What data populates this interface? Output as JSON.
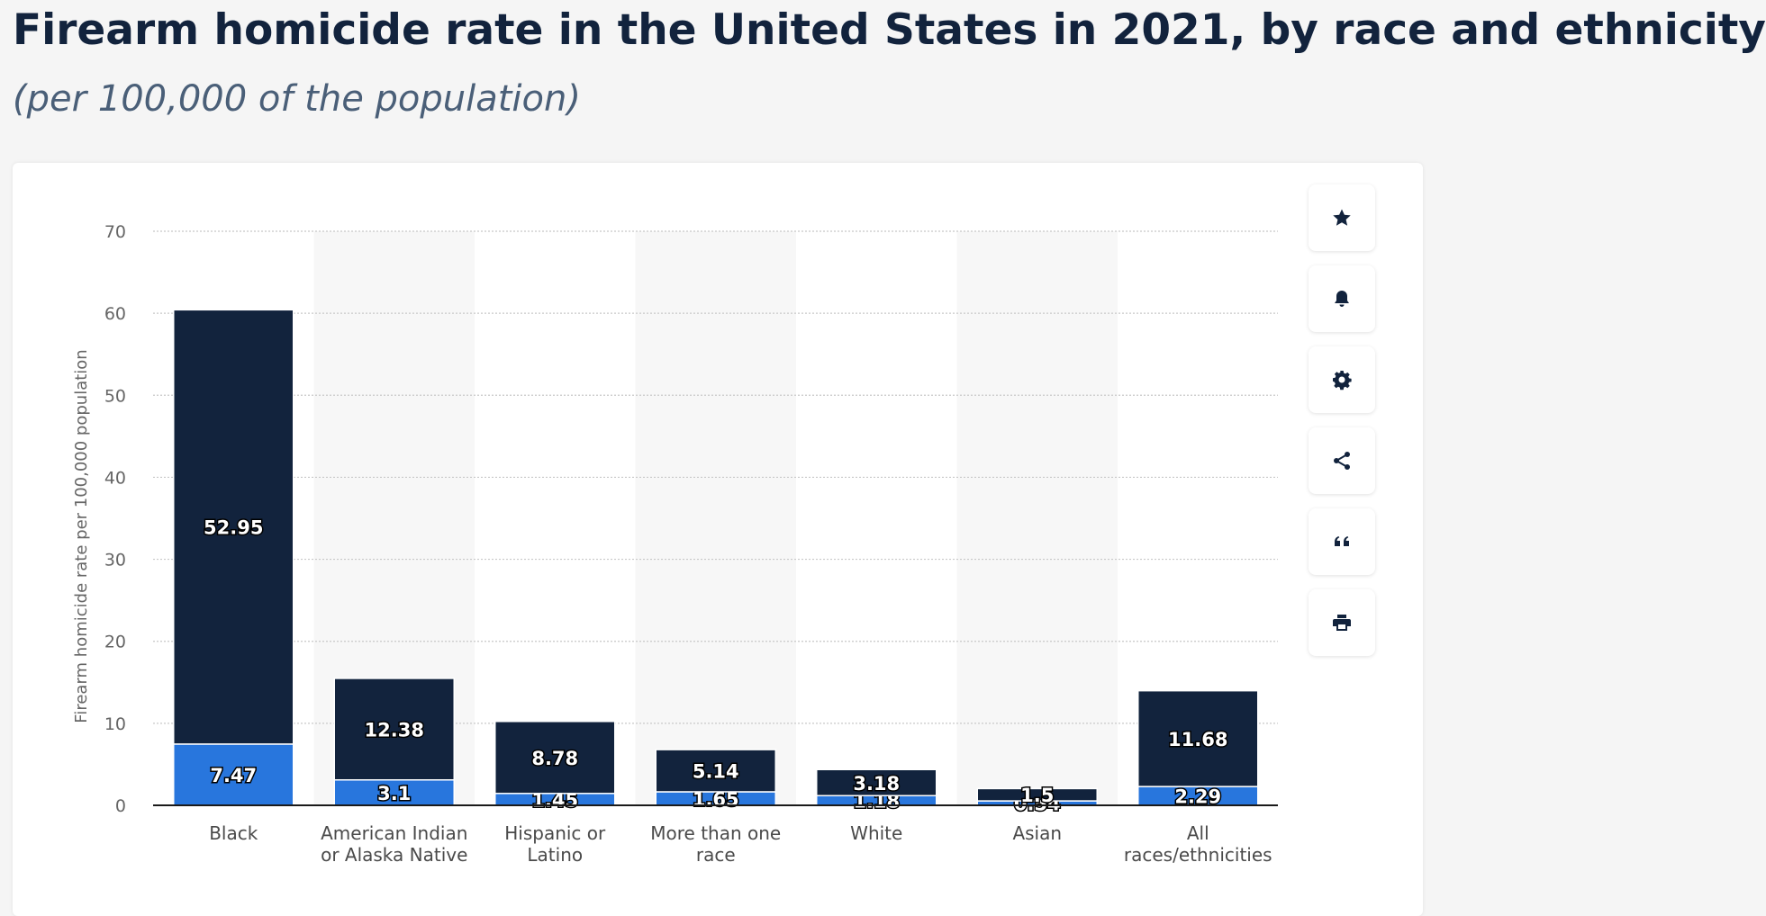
{
  "title": "Firearm homicide rate in the United States in 2021, by race and ethnicity",
  "subtitle": "(per 100,000 of the population)",
  "colors": {
    "series_top": "#12233d",
    "series_bottom": "#2876dd",
    "band": "#f7f7f7",
    "grid": "#c8c8c8",
    "axis_text": "#666666"
  },
  "toolbar": {
    "buttons": [
      {
        "name": "favorite-button",
        "icon": "star-icon"
      },
      {
        "name": "notify-button",
        "icon": "bell-icon"
      },
      {
        "name": "settings-button",
        "icon": "gear-icon"
      },
      {
        "name": "share-button",
        "icon": "share-icon"
      },
      {
        "name": "cite-button",
        "icon": "quote-icon"
      },
      {
        "name": "print-button",
        "icon": "printer-icon"
      }
    ]
  },
  "chart_data": {
    "type": "bar",
    "stacked": true,
    "title": "",
    "xlabel": "",
    "ylabel": "Firearm homicide rate per 100,000 population",
    "ylim": [
      0,
      70
    ],
    "yticks": [
      0,
      10,
      20,
      30,
      40,
      50,
      60,
      70
    ],
    "grid": true,
    "categories": [
      [
        "Black"
      ],
      [
        "American Indian",
        "or Alaska Native"
      ],
      [
        "Hispanic or",
        "Latino"
      ],
      [
        "More than one",
        "race"
      ],
      [
        "White"
      ],
      [
        "Asian"
      ],
      [
        "All",
        "races/ethnicities"
      ]
    ],
    "series": [
      {
        "values": [
          7.47,
          3.1,
          1.45,
          1.65,
          1.18,
          0.54,
          2.29
        ]
      },
      {
        "values": [
          52.95,
          12.38,
          8.78,
          5.14,
          3.18,
          1.5,
          11.68
        ]
      }
    ]
  }
}
